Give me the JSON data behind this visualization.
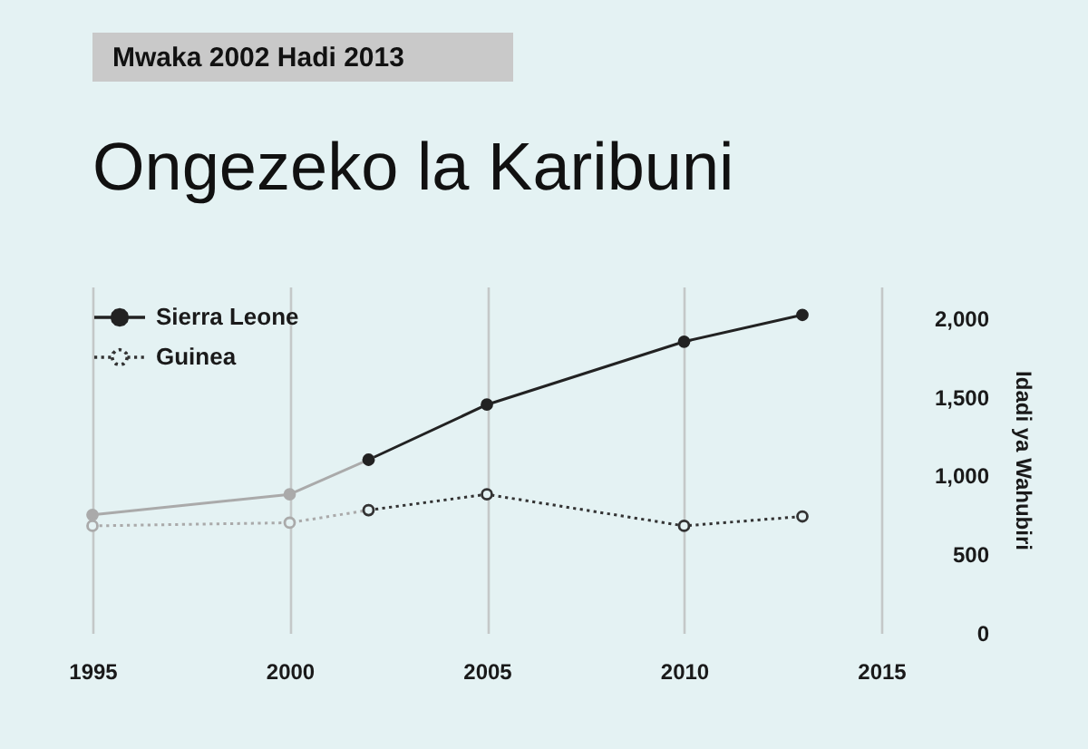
{
  "chart_data": {
    "type": "line",
    "title": "Ongezeko la Karibuni",
    "subtitle": "Mwaka 2002 Hadi 2013",
    "ylabel": "Idadi ya Wahubiri",
    "xlim": [
      1995,
      2015
    ],
    "xticks": [
      1995,
      2000,
      2005,
      2010,
      2015
    ],
    "ylim": [
      0,
      2200
    ],
    "yticks": [
      0,
      500,
      {
        "value": 1000,
        "label": "1,000"
      },
      {
        "value": 1500,
        "label": "1,500"
      },
      {
        "value": 2000,
        "label": "2,000"
      }
    ],
    "grid": "x",
    "legend": "top left",
    "series": [
      {
        "color": "#aaaaaa",
        "x": [
          1995,
          2000,
          2002
        ],
        "values": [
          750,
          880,
          1100
        ],
        "marker": "circle",
        "line_style": "solid"
      },
      {
        "color": "#aaaaaa",
        "x": [
          1995,
          2000,
          2002
        ],
        "values": [
          680,
          700,
          780
        ],
        "marker": "circle",
        "line_style": "dotted"
      },
      {
        "name": "Sierra Leone",
        "color": "#222222",
        "x": [
          2002,
          2005,
          2010,
          2013
        ],
        "values": [
          1100,
          1450,
          1850,
          2020
        ],
        "marker": "circle",
        "line_style": "solid"
      },
      {
        "name": "Guinea",
        "color": "#333333",
        "x": [
          2002,
          2005,
          2010,
          2013
        ],
        "values": [
          780,
          880,
          680,
          740
        ],
        "marker": "circle",
        "line_style": "dotted"
      }
    ]
  }
}
